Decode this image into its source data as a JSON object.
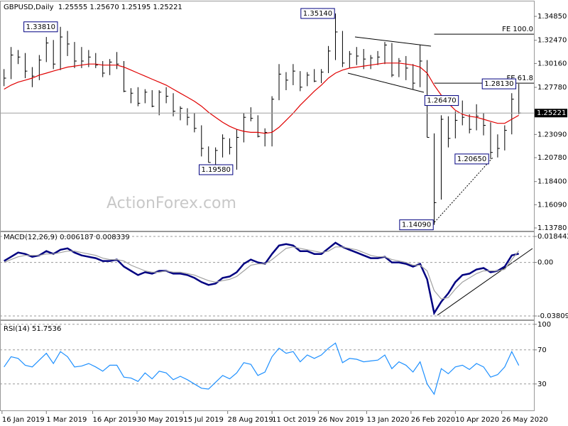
{
  "chart_data": {
    "type": "ohlc",
    "title": "GBPUSD,Daily  1.25555 1.25670 1.25195 1.25221",
    "watermark": "ActionForex.com",
    "color": "#000000",
    "x": [
      "18 Jan 2019",
      "25 Jan 2019",
      "1 Feb 2019",
      "8 Feb 2019",
      "15 Feb 2019",
      "22 Feb 2019",
      "1 Mar 2019",
      "8 Mar 2019",
      "15 Mar 2019",
      "22 Mar 2019",
      "29 Mar 2019",
      "5 Apr 2019",
      "12 Apr 2019",
      "19 Apr 2019",
      "26 Apr 2019",
      "3 May 2019",
      "10 May 2019",
      "17 May 2019",
      "24 May 2019",
      "31 May 2019",
      "7 Jun 2019",
      "14 Jun 2019",
      "21 Jun 2019",
      "28 Jun 2019",
      "5 Jul 2019",
      "12 Jul 2019",
      "19 Jul 2019",
      "26 Jul 2019",
      "2 Aug 2019",
      "9 Aug 2019",
      "16 Aug 2019",
      "23 Aug 2019",
      "30 Aug 2019",
      "6 Sep 2019",
      "13 Sep 2019",
      "20 Sep 2019",
      "27 Sep 2019",
      "4 Oct 2019",
      "11 Oct 2019",
      "18 Oct 2019",
      "25 Oct 2019",
      "1 Nov 2019",
      "8 Nov 2019",
      "15 Nov 2019",
      "22 Nov 2019",
      "29 Nov 2019",
      "6 Dec 2019",
      "13 Dec 2019",
      "20 Dec 2019",
      "27 Dec 2019",
      "3 Jan 2020",
      "10 Jan 2020",
      "17 Jan 2020",
      "24 Jan 2020",
      "31 Jan 2020",
      "7 Feb 2020",
      "14 Feb 2020",
      "21 Feb 2020",
      "28 Feb 2020",
      "6 Mar 2020",
      "13 Mar 2020",
      "20 Mar 2020",
      "27 Mar 2020",
      "3 Apr 2020",
      "10 Apr 2020",
      "17 Apr 2020",
      "24 Apr 2020",
      "1 May 2020",
      "8 May 2020",
      "15 May 2020",
      "22 May 2020",
      "29 May 2020",
      "5 Jun 2020",
      "12 Jun 2020"
    ],
    "xlim": [
      "14 Jan 2019",
      "27 Jun 2020"
    ],
    "xticks": [
      "16 Jan 2019",
      "1 Mar 2019",
      "16 Apr 2019",
      "30 May 2019",
      "15 Jul 2019",
      "28 Aug 2019",
      "11 Oct 2019",
      "26 Nov 2019",
      "13 Jan 2020",
      "26 Feb 2020",
      "10 Apr 2020",
      "26 May 2020"
    ],
    "high": [
      1.296,
      1.318,
      1.315,
      1.312,
      1.298,
      1.31,
      1.328,
      1.325,
      1.3381,
      1.334,
      1.323,
      1.318,
      1.315,
      1.312,
      1.304,
      1.306,
      1.313,
      1.304,
      1.277,
      1.278,
      1.276,
      1.275,
      1.275,
      1.278,
      1.272,
      1.259,
      1.257,
      1.252,
      1.24,
      1.219,
      1.218,
      1.231,
      1.227,
      1.236,
      1.252,
      1.258,
      1.25,
      1.237,
      1.269,
      1.301,
      1.293,
      1.301,
      1.294,
      1.293,
      1.296,
      1.296,
      1.319,
      1.3514,
      1.334,
      1.314,
      1.318,
      1.316,
      1.31,
      1.314,
      1.323,
      1.322,
      1.307,
      1.309,
      1.301,
      1.32,
      1.305,
      1.232,
      1.25,
      1.249,
      1.254,
      1.2647,
      1.251,
      1.261,
      1.252,
      1.243,
      1.231,
      1.24,
      1.272,
      1.2813
    ],
    "low": [
      1.279,
      1.286,
      1.301,
      1.287,
      1.278,
      1.285,
      1.303,
      1.296,
      1.295,
      1.309,
      1.297,
      1.297,
      1.298,
      1.297,
      1.288,
      1.29,
      1.296,
      1.273,
      1.262,
      1.259,
      1.262,
      1.258,
      1.25,
      1.262,
      1.249,
      1.245,
      1.24,
      1.233,
      1.209,
      1.203,
      1.198,
      1.208,
      1.211,
      1.1958,
      1.223,
      1.244,
      1.228,
      1.219,
      1.219,
      1.265,
      1.275,
      1.28,
      1.274,
      1.279,
      1.283,
      1.282,
      1.292,
      1.305,
      1.298,
      1.297,
      1.3,
      1.296,
      1.296,
      1.3,
      1.301,
      1.288,
      1.288,
      1.285,
      1.276,
      1.278,
      1.228,
      1.1409,
      1.166,
      1.218,
      1.227,
      1.24,
      1.232,
      1.235,
      1.23,
      1.2065,
      1.208,
      1.215,
      1.231,
      1.251
    ],
    "close": [
      1.287,
      1.31,
      1.308,
      1.294,
      1.289,
      1.305,
      1.322,
      1.301,
      1.328,
      1.321,
      1.304,
      1.304,
      1.308,
      1.3,
      1.292,
      1.303,
      1.301,
      1.274,
      1.272,
      1.262,
      1.273,
      1.259,
      1.273,
      1.269,
      1.254,
      1.257,
      1.248,
      1.237,
      1.217,
      1.203,
      1.215,
      1.227,
      1.218,
      1.228,
      1.248,
      1.247,
      1.229,
      1.233,
      1.266,
      1.291,
      1.285,
      1.294,
      1.278,
      1.29,
      1.284,
      1.293,
      1.314,
      1.333,
      1.302,
      1.311,
      1.309,
      1.306,
      1.307,
      1.308,
      1.32,
      1.29,
      1.304,
      1.297,
      1.282,
      1.304,
      1.228,
      1.163,
      1.246,
      1.227,
      1.245,
      1.248,
      1.236,
      1.249,
      1.24,
      1.213,
      1.217,
      1.235,
      1.266,
      1.25221
    ],
    "ylim": [
      1.135,
      1.3634
    ],
    "yticks": [
      {
        "value": 1.3485,
        "label": "1.34850"
      },
      {
        "value": 1.3247,
        "label": "1.32470"
      },
      {
        "value": 1.3016,
        "label": "1.30160"
      },
      {
        "value": 1.2778,
        "label": "1.27780"
      },
      {
        "value": 1.2309,
        "label": "1.23090"
      },
      {
        "value": 1.2078,
        "label": "1.20780"
      },
      {
        "value": 1.184,
        "label": "1.18400"
      },
      {
        "value": 1.1609,
        "label": "1.16090"
      },
      {
        "value": 1.1378,
        "label": "1.13780"
      }
    ],
    "series": [
      {
        "color": "#e00000",
        "values": [
          1.276,
          1.28,
          1.283,
          1.285,
          1.287,
          1.29,
          1.292,
          1.294,
          1.296,
          1.298,
          1.299,
          1.3,
          1.301,
          1.301,
          1.3,
          1.3,
          1.3,
          1.298,
          1.295,
          1.292,
          1.289,
          1.286,
          1.283,
          1.28,
          1.276,
          1.272,
          1.268,
          1.264,
          1.259,
          1.253,
          1.248,
          1.243,
          1.239,
          1.236,
          1.234,
          1.233,
          1.233,
          1.232,
          1.233,
          1.238,
          1.245,
          1.252,
          1.26,
          1.267,
          1.274,
          1.28,
          1.287,
          1.292,
          1.295,
          1.297,
          1.298,
          1.299,
          1.3,
          1.301,
          1.302,
          1.302,
          1.302,
          1.301,
          1.3,
          1.298,
          1.292,
          1.28,
          1.27,
          1.262,
          1.255,
          1.251,
          1.249,
          1.248,
          1.246,
          1.244,
          1.242,
          1.242,
          1.246,
          1.25
        ]
      }
    ],
    "last_price": {
      "value": 1.25221,
      "label": "1.25221"
    },
    "annotations": [
      {
        "text": "1.33810",
        "x": "13 Mar 2019",
        "y": 1.3381
      },
      {
        "text": "1.35140",
        "x": "13 Dec 2019",
        "y": 1.3514
      },
      {
        "text": "1.19580",
        "x": "3 Sep 2019",
        "y": 1.1958
      },
      {
        "text": "1.14090",
        "x": "20 Mar 2020",
        "y": 1.1409
      },
      {
        "text": "1.26470",
        "x": "14 Apr 2020",
        "y": 1.2647
      },
      {
        "text": "1.20650",
        "x": "14 May 2020",
        "y": 1.2065
      },
      {
        "text": "1.28130",
        "x": "10 Jun 2020",
        "y": 1.2813
      }
    ],
    "levels": [
      {
        "text": "FE 100.0",
        "x": "20 Mar 2020",
        "y": 1.3308
      },
      {
        "text": "FE 61.8",
        "x": "20 Mar 2020",
        "y": 1.282
      }
    ],
    "indicators": [
      {
        "type": "line",
        "title": "MACD(12,26,9) 0.006187 0.008339",
        "ylim": [
          -0.0406,
          0.0215
        ],
        "yticks": [
          0.018442,
          {
            "value": 0,
            "label": "0.00"
          },
          -0.038095
        ],
        "grid": true,
        "series": [
          {
            "color": "#000080",
            "values": [
              0.001,
              0.004,
              0.007,
              0.006,
              0.004,
              0.005,
              0.008,
              0.006,
              0.009,
              0.01,
              0.007,
              0.005,
              0.004,
              0.003,
              0.001,
              0.001,
              0.002,
              -0.003,
              -0.006,
              -0.009,
              -0.007,
              -0.008,
              -0.006,
              -0.006,
              -0.008,
              -0.008,
              -0.009,
              -0.011,
              -0.014,
              -0.016,
              -0.015,
              -0.011,
              -0.01,
              -0.007,
              -0.001,
              0.002,
              0.0,
              -0.001,
              0.006,
              0.012,
              0.013,
              0.012,
              0.008,
              0.008,
              0.006,
              0.006,
              0.01,
              0.014,
              0.011,
              0.009,
              0.007,
              0.005,
              0.003,
              0.003,
              0.004,
              0.0,
              0.0,
              -0.001,
              -0.003,
              -0.001,
              -0.012,
              -0.036,
              -0.028,
              -0.022,
              -0.014,
              -0.009,
              -0.008,
              -0.005,
              -0.004,
              -0.007,
              -0.006,
              -0.003,
              0.005,
              0.006187
            ]
          },
          {
            "color": "#a0a0a0",
            "values": [
              0.0,
              0.002,
              0.004,
              0.005,
              0.005,
              0.005,
              0.006,
              0.006,
              0.007,
              0.008,
              0.008,
              0.007,
              0.006,
              0.005,
              0.003,
              0.002,
              0.002,
              0.001,
              -0.002,
              -0.004,
              -0.006,
              -0.007,
              -0.007,
              -0.006,
              -0.007,
              -0.007,
              -0.008,
              -0.009,
              -0.011,
              -0.013,
              -0.014,
              -0.013,
              -0.012,
              -0.01,
              -0.006,
              -0.002,
              -0.001,
              -0.001,
              0.002,
              0.006,
              0.01,
              0.011,
              0.01,
              0.009,
              0.008,
              0.007,
              0.008,
              0.011,
              0.011,
              0.01,
              0.009,
              0.007,
              0.005,
              0.004,
              0.004,
              0.002,
              0.001,
              0.0,
              -0.002,
              -0.002,
              -0.006,
              -0.02,
              -0.026,
              -0.025,
              -0.019,
              -0.014,
              -0.011,
              -0.008,
              -0.006,
              -0.006,
              -0.006,
              -0.005,
              0.002,
              0.008339
            ]
          }
        ]
      },
      {
        "type": "line",
        "title": "RSI(14) 51.7536",
        "ylim": [
          -1,
          104
        ],
        "yticks": [
          100,
          70,
          30
        ],
        "grid": true,
        "series": [
          {
            "color": "#1e90ff",
            "values": [
              50,
              62,
              60,
              52,
              50,
              58,
              66,
              54,
              68,
              62,
              50,
              51,
              54,
              50,
              45,
              52,
              52,
              38,
              37,
              33,
              43,
              36,
              45,
              43,
              35,
              39,
              35,
              30,
              25,
              24,
              32,
              40,
              36,
              43,
              55,
              53,
              40,
              44,
              62,
              72,
              66,
              68,
              56,
              64,
              60,
              64,
              72,
              78,
              55,
              60,
              59,
              56,
              57,
              58,
              64,
              48,
              56,
              52,
              44,
              56,
              30,
              18,
              48,
              42,
              50,
              52,
              47,
              54,
              50,
              38,
              41,
              50,
              68,
              51.7536
            ]
          }
        ]
      }
    ]
  }
}
